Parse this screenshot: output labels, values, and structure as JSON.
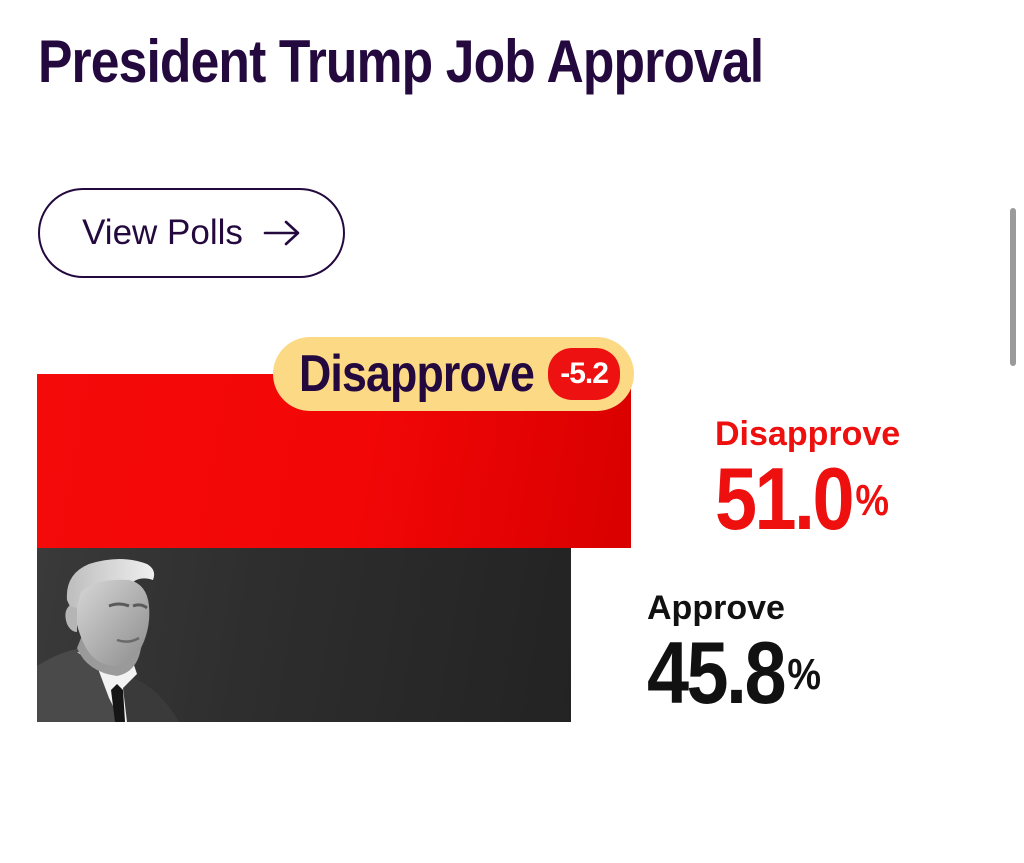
{
  "page": {
    "title": "President Trump Job Approval"
  },
  "actions": {
    "view_polls_label": "View Polls",
    "view_polls_icon": "arrow-right-icon"
  },
  "leader_badge": {
    "label": "Disapprove",
    "margin": "-5.2",
    "badge_color": "#fcd985",
    "margin_color": "#ee1111"
  },
  "results": {
    "disapprove": {
      "label": "Disapprove",
      "value": "51.0",
      "unit": "%",
      "color": "#ee0f0f"
    },
    "approve": {
      "label": "Approve",
      "value": "45.8",
      "unit": "%",
      "color": "#111111"
    }
  },
  "chart_data": {
    "type": "bar",
    "orientation": "horizontal",
    "categories": [
      "Disapprove",
      "Approve"
    ],
    "values": [
      51.0,
      45.8
    ],
    "unit": "%",
    "colors": [
      "#f20606",
      "#2e2e2e"
    ],
    "xlim": [
      0,
      58.2
    ],
    "title": "President Trump Job Approval",
    "annotation": "Disapprove -5.2"
  },
  "colors": {
    "brand": "#24093f",
    "disapprove": "#f20606",
    "approve": "#2e2e2e"
  }
}
